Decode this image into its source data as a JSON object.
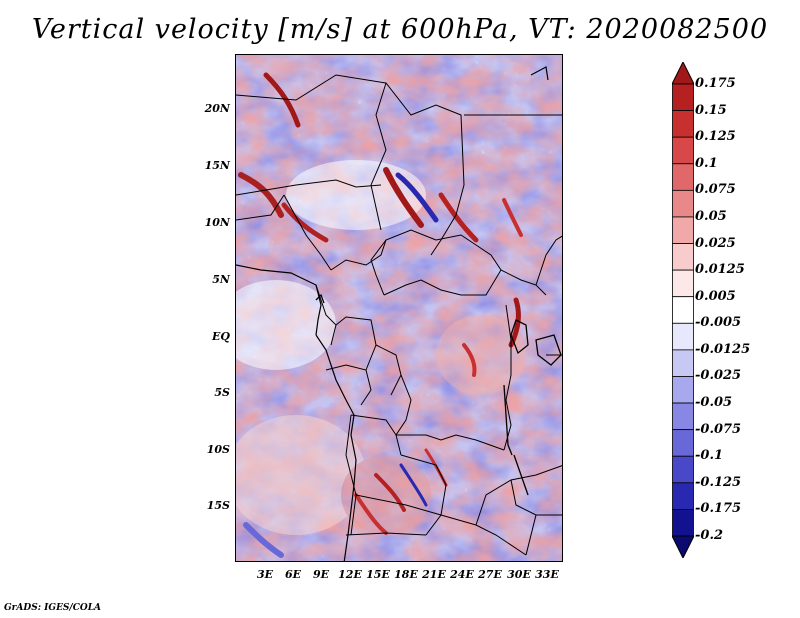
{
  "title": "Vertical velocity [m/s] at 600hPa, VT: 2020082500",
  "credit": "GrADS: IGES/COLA",
  "lat_labels": [
    "20N",
    "15N",
    "10N",
    "5N",
    "EQ",
    "5S",
    "10S",
    "15S"
  ],
  "lon_labels": [
    "3E",
    "6E",
    "9E",
    "12E",
    "15E",
    "18E",
    "21E",
    "24E",
    "27E",
    "30E",
    "33E"
  ],
  "colorbar": {
    "labels": [
      "0.175",
      "0.15",
      "0.125",
      "0.1",
      "0.075",
      "0.05",
      "0.025",
      "0.0125",
      "0.005",
      "-0.005",
      "-0.0125",
      "-0.025",
      "-0.05",
      "-0.075",
      "-0.1",
      "-0.125",
      "-0.175",
      "-0.2"
    ],
    "colors": [
      "#a01818",
      "#b52020",
      "#c83030",
      "#d84848",
      "#e06868",
      "#e88888",
      "#f0a8a8",
      "#f8cccc",
      "#fce8e8",
      "#ffffff",
      "#e8e8fc",
      "#c8c8f4",
      "#a8a8ee",
      "#8888e4",
      "#6868d8",
      "#4848c8",
      "#2828b0",
      "#121290",
      "#0a0a70"
    ]
  }
}
